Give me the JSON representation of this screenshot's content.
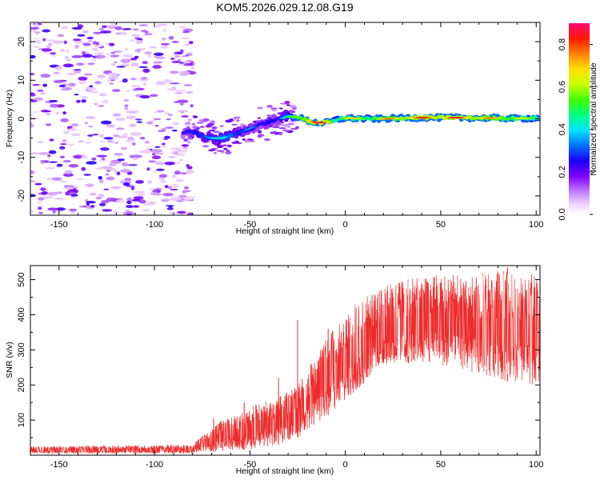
{
  "title": "KOM5.2026.029.12.08.G19",
  "chart_data": [
    {
      "type": "heatmap",
      "xlabel": "Height of straight line (km)",
      "ylabel": "Frequency (Hz)",
      "xlim": [
        -165,
        102
      ],
      "ylim": [
        -25,
        25
      ],
      "xticks": [
        -150,
        -100,
        -50,
        0,
        50,
        100
      ],
      "yticks": [
        -20,
        -10,
        0,
        10,
        20
      ],
      "noise_region": {
        "x_range": [
          -165,
          -80
        ],
        "y_range": [
          -25,
          25
        ],
        "amplitude_range": [
          0.05,
          0.25
        ]
      },
      "signal_track": {
        "x": [
          -85,
          -80,
          -75,
          -70,
          -65,
          -60,
          -55,
          -50,
          -45,
          -40,
          -35,
          -30,
          -25,
          -20,
          -15,
          -10,
          -5,
          0,
          10,
          20,
          30,
          40,
          50,
          60,
          70,
          80,
          90,
          100
        ],
        "freq": [
          -3.5,
          -3.5,
          -4.5,
          -5.0,
          -5.0,
          -4.5,
          -3.5,
          -2.5,
          -1.5,
          -0.8,
          0.0,
          0.5,
          0.5,
          -0.5,
          -1.0,
          -1.0,
          -0.3,
          0.2,
          0.0,
          0.0,
          0.2,
          0.3,
          0.3,
          0.3,
          0.2,
          0.2,
          0.1,
          0.2
        ],
        "amplitude": [
          0.25,
          0.35,
          0.4,
          0.4,
          0.45,
          0.45,
          0.35,
          0.35,
          0.3,
          0.35,
          0.3,
          0.5,
          0.75,
          0.8,
          0.9,
          0.85,
          0.6,
          0.7,
          0.65,
          0.75,
          0.8,
          0.85,
          0.85,
          0.85,
          0.8,
          0.75,
          0.7,
          0.6
        ]
      },
      "colorbar": {
        "label": "Normalized spectral amplitude",
        "range": [
          0,
          0.9
        ],
        "ticks": [
          0.0,
          0.2,
          0.4,
          0.6,
          0.8
        ]
      }
    },
    {
      "type": "line",
      "xlabel": "Height of straight line (km)",
      "ylabel": "SNR (v/v)",
      "xlim": [
        -165,
        102
      ],
      "ylim": [
        0,
        540
      ],
      "xticks": [
        -150,
        -100,
        -50,
        0,
        50,
        100
      ],
      "yticks": [
        100,
        200,
        300,
        400,
        500
      ],
      "color": "#ee2b2b",
      "envelope": {
        "x": [
          -165,
          -80,
          -75,
          -70,
          -65,
          -60,
          -55,
          -50,
          -45,
          -40,
          -35,
          -30,
          -25,
          -20,
          -15,
          -10,
          -5,
          0,
          5,
          10,
          15,
          20,
          25,
          30,
          40,
          50,
          60,
          70,
          80,
          90,
          100
        ],
        "lower": [
          5,
          5,
          10,
          10,
          12,
          15,
          15,
          15,
          20,
          25,
          30,
          40,
          50,
          70,
          90,
          110,
          130,
          150,
          180,
          200,
          230,
          250,
          260,
          260,
          265,
          255,
          245,
          230,
          215,
          205,
          200
        ],
        "upper": [
          25,
          30,
          55,
          80,
          100,
          110,
          120,
          140,
          150,
          160,
          170,
          180,
          200,
          240,
          290,
          330,
          370,
          400,
          430,
          450,
          460,
          480,
          490,
          500,
          510,
          515,
          520,
          520,
          525,
          525,
          525
        ]
      },
      "spikes": [
        {
          "x": -69,
          "y": 105
        },
        {
          "x": -53,
          "y": 150
        },
        {
          "x": -35,
          "y": 220
        },
        {
          "x": -25,
          "y": 385
        },
        {
          "x": -9,
          "y": 360
        },
        {
          "x": 33,
          "y": 490
        },
        {
          "x": 85,
          "y": 535
        }
      ]
    }
  ]
}
